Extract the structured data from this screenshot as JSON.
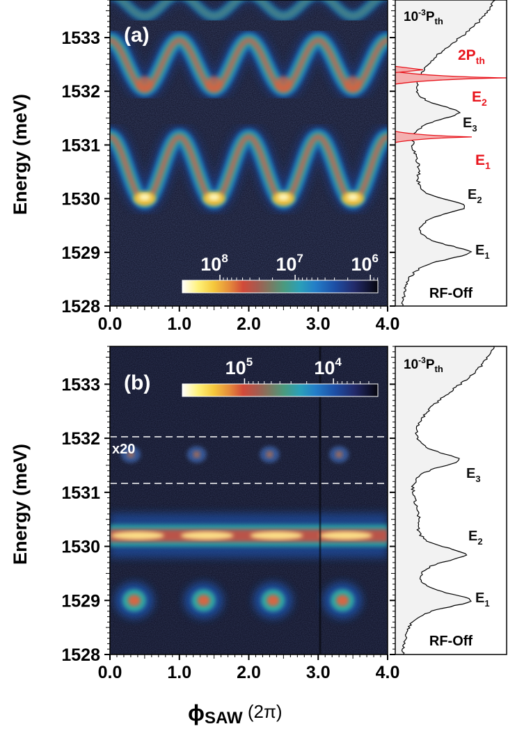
{
  "chart_data": [
    {
      "type": "heatmap",
      "panel": "(a)",
      "xlabel": "ϕSAW (2π)",
      "ylabel": "Energy (meV)",
      "xlim": [
        0,
        4
      ],
      "ylim": [
        1528,
        1533.7
      ],
      "xticks": [
        "0.0",
        "1.0",
        "2.0",
        "3.0",
        "4.0"
      ],
      "yticks": [
        "1528",
        "1529",
        "1530",
        "1531",
        "1532",
        "1533"
      ],
      "colorbar": {
        "labels": [
          "10^8",
          "10^7",
          "10^6"
        ],
        "values": [
          8,
          7,
          6
        ],
        "range": [
          8.5,
          5.9
        ]
      },
      "bands": [
        {
          "center": 1532.5,
          "amplitude": 0.45,
          "period": 1,
          "phase": 0.5,
          "intensity": 0.62
        },
        {
          "center": 1530.55,
          "amplitude": 0.6,
          "period": 1,
          "phase": 0.5,
          "intensity": 0.95
        },
        {
          "center": 1533.6,
          "amplitude": 0.2,
          "period": 1,
          "phase": 0.5,
          "intensity": 0.35
        }
      ],
      "side_spectra": [
        {
          "label": "RF-Off",
          "power": "10^-3 Pth",
          "peaks": [
            {
              "label": "E1",
              "energy": 1529.0
            },
            {
              "label": "E2",
              "energy": 1529.85
            },
            {
              "label": "E3",
              "energy": 1531.6
            }
          ]
        },
        {
          "label": "2Pth",
          "color": "#e8141c",
          "peaks": [
            {
              "label": "E1",
              "energy": 1531.15
            },
            {
              "label": "E2",
              "energy": 1532.25
            }
          ]
        }
      ]
    },
    {
      "type": "heatmap",
      "panel": "(b)",
      "xlabel": "ϕSAW (2π)",
      "ylabel": "Energy (meV)",
      "xlim": [
        0,
        4
      ],
      "ylim": [
        1528,
        1533.7
      ],
      "xticks": [
        "0.0",
        "1.0",
        "2.0",
        "3.0",
        "4.0"
      ],
      "yticks": [
        "1528",
        "1529",
        "1530",
        "1531",
        "1532",
        "1533"
      ],
      "colorbar": {
        "labels": [
          "10^5",
          "10^4"
        ],
        "values": [
          5,
          4
        ],
        "range": [
          5.7,
          3.5
        ]
      },
      "magnified_region": {
        "label": "x20",
        "energy_range": [
          1531.25,
          1532.1
        ]
      },
      "features": [
        {
          "kind": "band",
          "energy": 1530.2,
          "intensity": 0.9
        },
        {
          "kind": "spots",
          "energy": 1529.0,
          "x": [
            0.35,
            1.35,
            2.35,
            3.35
          ],
          "intensity": 0.85
        },
        {
          "kind": "spots",
          "energy": 1531.7,
          "x": [
            0.3,
            1.25,
            2.3,
            3.3
          ],
          "intensity": 0.4
        }
      ],
      "side_spectra": [
        {
          "label": "RF-Off",
          "power": "10^-3 Pth",
          "peaks": [
            {
              "label": "E1",
              "energy": 1529.0
            },
            {
              "label": "E2",
              "energy": 1529.85
            },
            {
              "label": "E3",
              "energy": 1531.6
            }
          ]
        }
      ]
    }
  ]
}
